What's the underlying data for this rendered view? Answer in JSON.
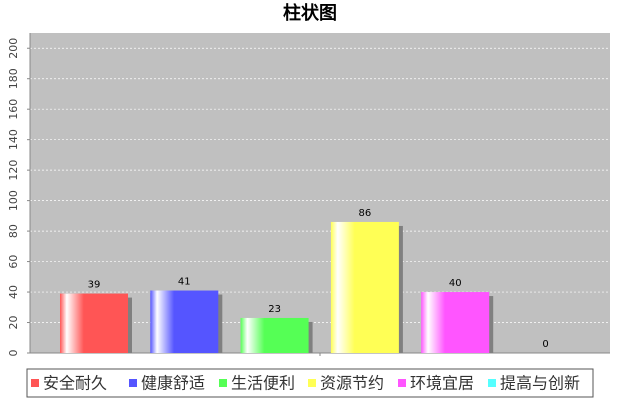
{
  "chart_data": {
    "type": "bar",
    "title": "柱状图",
    "series": [
      {
        "name": "安全耐久",
        "color": "#ff5555",
        "values": [
          39
        ]
      },
      {
        "name": "健康舒适",
        "color": "#5555ff",
        "values": [
          41
        ]
      },
      {
        "name": "生活便利",
        "color": "#55ff55",
        "values": [
          23
        ]
      },
      {
        "name": "资源节约",
        "color": "#ffff55",
        "values": [
          86
        ]
      },
      {
        "name": "环境宜居",
        "color": "#ff55ff",
        "values": [
          40
        ]
      },
      {
        "name": "提高与创新",
        "color": "#55ffff",
        "values": [
          0
        ]
      }
    ],
    "ylim": [
      0,
      210
    ],
    "yticks": [
      0,
      20,
      40,
      60,
      80,
      100,
      120,
      140,
      160,
      180,
      200
    ],
    "grid": true
  }
}
